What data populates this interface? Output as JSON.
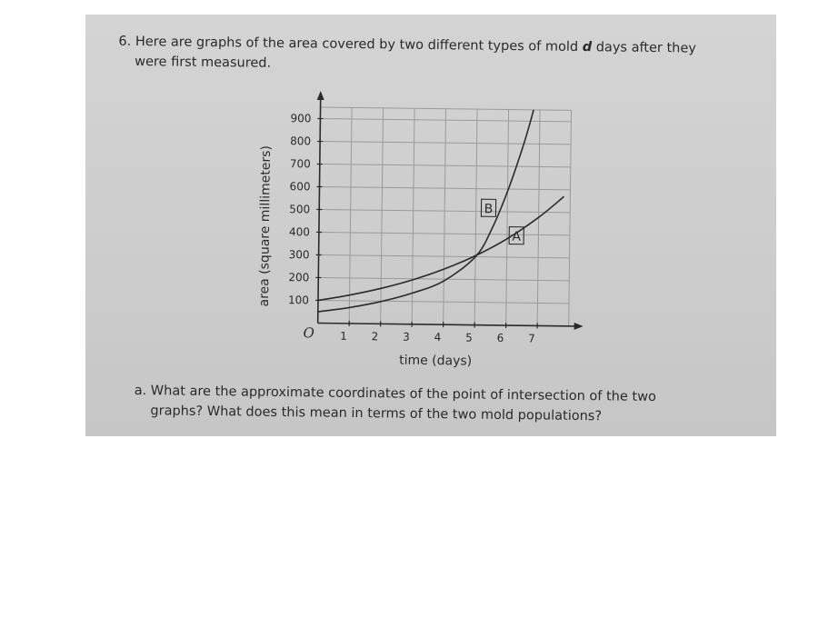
{
  "question": {
    "number": "6.",
    "line1": "Here are graphs of the area covered by two different types of mold d days after they",
    "line1_before": "Here are graphs of the area covered by two different types of mold",
    "line1_var": "d",
    "line1_after": "days after they",
    "line2": "were first measured."
  },
  "subquestion": {
    "line1": "a. What are the approximate coordinates of the point of intersection of the two",
    "line2": "graphs? What does this mean in terms of the two mold populations?"
  },
  "chart_data": {
    "type": "line",
    "xlabel": "time (days)",
    "ylabel": "area (square millimeters)",
    "xlim": [
      0,
      8
    ],
    "ylim": [
      0,
      950
    ],
    "x_ticks": [
      1,
      2,
      3,
      4,
      5,
      6,
      7
    ],
    "y_ticks": [
      100,
      200,
      300,
      400,
      500,
      600,
      700,
      800,
      900
    ],
    "origin_label": "O",
    "grid": true,
    "series": [
      {
        "name": "A",
        "points": [
          [
            0,
            100
          ],
          [
            1,
            125
          ],
          [
            2,
            156
          ],
          [
            3,
            195
          ],
          [
            4,
            244
          ],
          [
            5,
            305
          ],
          [
            6,
            381
          ],
          [
            7,
            477
          ],
          [
            7.8,
            570
          ]
        ]
      },
      {
        "name": "B",
        "points": [
          [
            0,
            50
          ],
          [
            1,
            70
          ],
          [
            2,
            98
          ],
          [
            3,
            137
          ],
          [
            4,
            192
          ],
          [
            5,
            300
          ],
          [
            5.5,
            420
          ],
          [
            6,
            590
          ],
          [
            6.5,
            800
          ],
          [
            6.8,
            950
          ]
        ]
      }
    ],
    "color": "#2a2a2a",
    "grid_color": "#9a9a9a"
  }
}
